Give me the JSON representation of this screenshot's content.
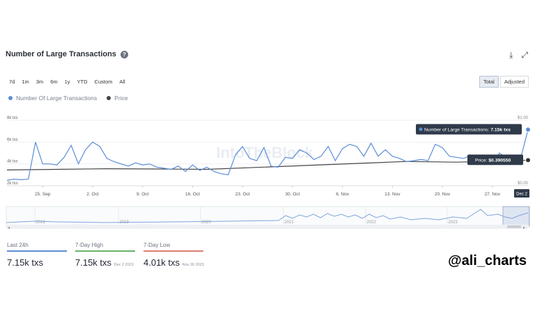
{
  "header": {
    "title": "Number of Large Transactions"
  },
  "range_buttons": [
    "7d",
    "1m",
    "3m",
    "6m",
    "1y",
    "YTD",
    "Custom",
    "All"
  ],
  "mode_buttons": [
    "Total",
    "Adjusted"
  ],
  "legend": [
    {
      "label": "Number Of Large Transactions",
      "color": "#5b8dd6"
    },
    {
      "label": "Price",
      "color": "#444444"
    }
  ],
  "chart_data": {
    "type": "line",
    "watermark": "IntoTheBlock",
    "x_ticks": [
      "25. Sep",
      "2. Oct",
      "9. Oct",
      "16. Oct",
      "23. Oct",
      "30. Oct",
      "6. Nov",
      "13. Nov",
      "20. Nov",
      "27. Nov"
    ],
    "x_end_label": "Dec 2",
    "y_left": {
      "ticks": [
        "2k txs",
        "4k txs",
        "6k txs",
        "8k txs"
      ],
      "range": [
        2000,
        8000
      ]
    },
    "y_right": {
      "ticks": [
        "$0.00",
        "$1.00"
      ],
      "range": [
        0,
        1
      ]
    },
    "series": [
      {
        "name": "Number Of Large Transactions",
        "color": "#5b8dd6",
        "axis": "left",
        "x": [
          "Sep 20",
          "Sep 21",
          "Sep 22",
          "Sep 23",
          "Sep 24",
          "Sep 25",
          "Sep 26",
          "Sep 27",
          "Sep 28",
          "Sep 29",
          "Sep 30",
          "Oct 1",
          "Oct 2",
          "Oct 3",
          "Oct 4",
          "Oct 5",
          "Oct 6",
          "Oct 7",
          "Oct 8",
          "Oct 9",
          "Oct 10",
          "Oct 11",
          "Oct 12",
          "Oct 13",
          "Oct 14",
          "Oct 15",
          "Oct 16",
          "Oct 17",
          "Oct 18",
          "Oct 19",
          "Oct 20",
          "Oct 21",
          "Oct 22",
          "Oct 23",
          "Oct 24",
          "Oct 25",
          "Oct 26",
          "Oct 27",
          "Oct 28",
          "Oct 29",
          "Oct 30",
          "Oct 31",
          "Nov 1",
          "Nov 2",
          "Nov 3",
          "Nov 4",
          "Nov 5",
          "Nov 6",
          "Nov 7",
          "Nov 8",
          "Nov 9",
          "Nov 10",
          "Nov 11",
          "Nov 12",
          "Nov 13",
          "Nov 14",
          "Nov 15",
          "Nov 16",
          "Nov 17",
          "Nov 18",
          "Nov 19",
          "Nov 20",
          "Nov 21",
          "Nov 22",
          "Nov 23",
          "Nov 24",
          "Nov 25",
          "Nov 26",
          "Nov 27",
          "Nov 28",
          "Nov 29",
          "Nov 30",
          "Dec 1",
          "Dec 2"
        ],
        "values": [
          2500,
          2600,
          2550,
          2600,
          6000,
          4000,
          4000,
          3900,
          4600,
          5700,
          4000,
          5300,
          6000,
          5600,
          4500,
          4200,
          4000,
          3800,
          4100,
          3900,
          4000,
          3700,
          3600,
          3500,
          3800,
          3300,
          3900,
          3400,
          3700,
          3300,
          3100,
          3000,
          4800,
          5600,
          4500,
          4300,
          5500,
          3800,
          3700,
          4600,
          4500,
          5300,
          5000,
          4400,
          4700,
          5600,
          4300,
          5400,
          5800,
          5600,
          4700,
          5900,
          4700,
          5300,
          4700,
          4500,
          4200,
          4300,
          4400,
          4300,
          5800,
          5500,
          4700,
          4600,
          4500,
          4800,
          4400,
          4010,
          4100,
          5000,
          4500,
          4800,
          4600,
          7150
        ]
      },
      {
        "name": "Price",
        "color": "#444444",
        "axis": "right",
        "x": [
          "Sep 20",
          "Sep 27",
          "Oct 4",
          "Oct 11",
          "Oct 18",
          "Oct 25",
          "Nov 1",
          "Nov 8",
          "Nov 15",
          "Nov 22",
          "Nov 29",
          "Dec 2"
        ],
        "values": [
          0.24,
          0.25,
          0.26,
          0.255,
          0.25,
          0.28,
          0.31,
          0.34,
          0.37,
          0.36,
          0.38,
          0.39055
        ]
      }
    ],
    "tooltips": [
      {
        "label": "Number of Large Transactions:",
        "value": "7.15k txs"
      },
      {
        "label": "Price:",
        "value": "$0.390550"
      }
    ]
  },
  "navigator": {
    "years": [
      "2018",
      "2019",
      "2020",
      "2021",
      "2022",
      "2023"
    ]
  },
  "stats": [
    {
      "label": "Last 24h",
      "value": "7.15k txs",
      "date": "",
      "color": "#5b8dd6"
    },
    {
      "label": "7-Day High",
      "value": "7.15k txs",
      "date": "Dec 2 2023",
      "color": "#67b36b"
    },
    {
      "label": "7-Day Low",
      "value": "4.01k txs",
      "date": "Nov 26 2023",
      "color": "#e07b73"
    }
  ],
  "handle": "@ali_charts"
}
